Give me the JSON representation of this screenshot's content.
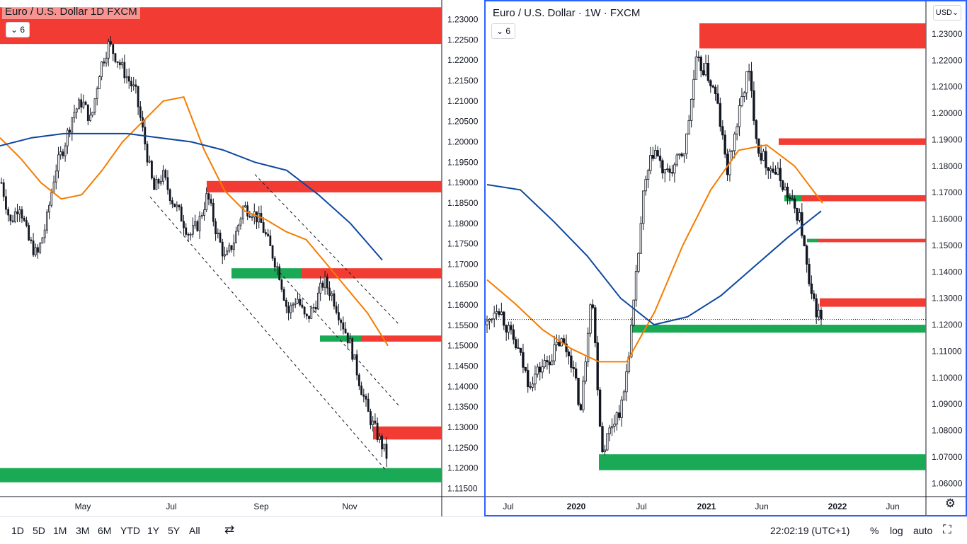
{
  "left_chart": {
    "title": "Euro / U.S. Dollar   1D   FXCM",
    "indicator_badge": "6",
    "price_ticks": [
      "1.23000",
      "1.22500",
      "1.22000",
      "1.21500",
      "1.21000",
      "1.20500",
      "1.20000",
      "1.19500",
      "1.19000",
      "1.18500",
      "1.18000",
      "1.17500",
      "1.17000",
      "1.16500",
      "1.16000",
      "1.15500",
      "1.15000",
      "1.14500",
      "1.14000",
      "1.13500",
      "1.13000",
      "1.12500",
      "1.12000",
      "1.11500"
    ],
    "time_ticks": [
      "May",
      "Jul",
      "Sep",
      "Nov"
    ]
  },
  "right_chart": {
    "title": "Euro / U.S. Dollar · 1W · FXCM",
    "indicator_badge": "6",
    "currency_selector": "USD",
    "price_ticks": [
      "1.23000",
      "1.22000",
      "1.21000",
      "1.20000",
      "1.19000",
      "1.18000",
      "1.17000",
      "1.16000",
      "1.15000",
      "1.14000",
      "1.13000",
      "1.12000",
      "1.11000",
      "1.10000",
      "1.09000",
      "1.08000",
      "1.07000",
      "1.06000"
    ],
    "time_ticks": [
      "Jul",
      "2020",
      "Jul",
      "2021",
      "Jun",
      "2022",
      "Jun"
    ]
  },
  "toolbar": {
    "ranges": [
      "1D",
      "5D",
      "1M",
      "3M",
      "6M",
      "YTD",
      "1Y",
      "5Y",
      "All"
    ],
    "clock": "22:02:19 (UTC+1)",
    "percent": "%",
    "log": "log",
    "auto": "auto"
  },
  "chart_data": [
    {
      "type": "candlestick",
      "title": "Euro / U.S. Dollar   1D   FXCM",
      "ylim": [
        1.113,
        1.232
      ],
      "x_ticks": [
        "May",
        "Jul",
        "Sep",
        "Nov"
      ],
      "close_path": [
        [
          "Mar",
          1.19
        ],
        [
          "Mar",
          1.18
        ],
        [
          "Mar",
          1.185
        ],
        [
          "Mar",
          1.176
        ],
        [
          "Apr",
          1.172
        ],
        [
          "Apr",
          1.18
        ],
        [
          "Apr",
          1.193
        ],
        [
          "Apr",
          1.199
        ],
        [
          "Apr",
          1.207
        ],
        [
          "May",
          1.21
        ],
        [
          "May",
          1.205
        ],
        [
          "May",
          1.218
        ],
        [
          "May",
          1.224
        ],
        [
          "May",
          1.22
        ],
        [
          "Jun",
          1.216
        ],
        [
          "Jun",
          1.212
        ],
        [
          "Jun",
          1.2
        ],
        [
          "Jun",
          1.188
        ],
        [
          "Jun",
          1.192
        ],
        [
          "Jul",
          1.186
        ],
        [
          "Jul",
          1.182
        ],
        [
          "Jul",
          1.177
        ],
        [
          "Jul",
          1.18
        ],
        [
          "Aug",
          1.187
        ],
        [
          "Aug",
          1.178
        ],
        [
          "Aug",
          1.171
        ],
        [
          "Aug",
          1.176
        ],
        [
          "Sep",
          1.184
        ],
        [
          "Sep",
          1.183
        ],
        [
          "Sep",
          1.18
        ],
        [
          "Sep",
          1.174
        ],
        [
          "Sep",
          1.168
        ],
        [
          "Oct",
          1.158
        ],
        [
          "Oct",
          1.162
        ],
        [
          "Oct",
          1.156
        ],
        [
          "Oct",
          1.16
        ],
        [
          "Oct",
          1.166
        ],
        [
          "Oct",
          1.162
        ],
        [
          "Nov",
          1.156
        ],
        [
          "Nov",
          1.15
        ],
        [
          "Nov",
          1.141
        ],
        [
          "Nov",
          1.133
        ],
        [
          "Nov",
          1.128
        ],
        [
          "Nov",
          1.123
        ]
      ],
      "moving_averages": [
        {
          "color": "#f57c00",
          "values": [
            1.201,
            1.196,
            1.19,
            1.186,
            1.187,
            1.193,
            1.2,
            1.205,
            1.21,
            1.211,
            1.198,
            1.188,
            1.183,
            1.181,
            1.178,
            1.176,
            1.17,
            1.164,
            1.158,
            1.15
          ]
        },
        {
          "color": "#0d47a1",
          "values": [
            1.199,
            1.201,
            1.202,
            1.202,
            1.202,
            1.201,
            1.2,
            1.198,
            1.195,
            1.193,
            1.187,
            1.18,
            1.171
          ]
        }
      ],
      "supply_zones": [
        [
          1.224,
          1.233
        ],
        [
          1.1876,
          1.1904
        ],
        [
          1.1665,
          1.169
        ],
        [
          1.151,
          1.1525
        ],
        [
          1.127,
          1.1302
        ]
      ],
      "demand_zones": [
        [
          1.1665,
          1.169
        ],
        [
          1.151,
          1.1525
        ],
        [
          1.1165,
          1.12
        ]
      ],
      "trendlines": [
        [
          "Jun",
          1.1865,
          "Nov",
          1.1195
        ],
        [
          "Aug",
          1.192,
          "Nov",
          1.155
        ],
        [
          "Sep",
          1.168,
          "Nov",
          1.135
        ]
      ]
    },
    {
      "type": "candlestick",
      "title": "Euro / U.S. Dollar · 1W · FXCM",
      "ylim": [
        1.055,
        1.238
      ],
      "x_ticks": [
        "Jul",
        "2020",
        "Jul",
        "2021",
        "Jun",
        "2022",
        "Jun"
      ],
      "close_path": [
        [
          "2019-Jun",
          1.12
        ],
        [
          "2019-Jul",
          1.128
        ],
        [
          "2019-Jul",
          1.118
        ],
        [
          "2019-Aug",
          1.11
        ],
        [
          "2019-Sep",
          1.098
        ],
        [
          "2019-Oct",
          1.103
        ],
        [
          "2019-Nov",
          1.107
        ],
        [
          "2019-Dec",
          1.114
        ],
        [
          "2020-Jan",
          1.108
        ],
        [
          "2020-Feb",
          1.087
        ],
        [
          "2020-Mar",
          1.135
        ],
        [
          "2020-Mar",
          1.072
        ],
        [
          "2020-Apr",
          1.083
        ],
        [
          "2020-May",
          1.09
        ],
        [
          "2020-Jun",
          1.125
        ],
        [
          "2020-Jul",
          1.17
        ],
        [
          "2020-Aug",
          1.187
        ],
        [
          "2020-Sep",
          1.176
        ],
        [
          "2020-Oct",
          1.18
        ],
        [
          "2020-Nov",
          1.187
        ],
        [
          "2020-Dec",
          1.219
        ],
        [
          "2021-Jan",
          1.216
        ],
        [
          "2021-Feb",
          1.205
        ],
        [
          "2021-Mar",
          1.178
        ],
        [
          "2021-Apr",
          1.197
        ],
        [
          "2021-May",
          1.217
        ],
        [
          "2021-Jun",
          1.186
        ],
        [
          "2021-Jul",
          1.18
        ],
        [
          "2021-Aug",
          1.176
        ],
        [
          "2021-Sep",
          1.167
        ],
        [
          "2021-Oct",
          1.16
        ],
        [
          "2021-Nov",
          1.13
        ],
        [
          "2021-Nov",
          1.122
        ]
      ],
      "moving_averages": [
        {
          "color": "#f57c00",
          "values": [
            1.137,
            1.128,
            1.118,
            1.111,
            1.106,
            1.106,
            1.125,
            1.15,
            1.171,
            1.186,
            1.188,
            1.18,
            1.166
          ]
        },
        {
          "color": "#0d47a1",
          "values": [
            1.173,
            1.171,
            1.159,
            1.146,
            1.13,
            1.12,
            1.123,
            1.131,
            1.142,
            1.153,
            1.163
          ]
        }
      ],
      "supply_zones": [
        [
          1.2245,
          1.234
        ],
        [
          1.188,
          1.1905
        ],
        [
          1.1667,
          1.169
        ],
        [
          1.1512,
          1.1525
        ],
        [
          1.1268,
          1.13
        ]
      ],
      "demand_zones": [
        [
          1.117,
          1.12
        ],
        [
          1.065,
          1.071
        ],
        [
          1.1667,
          1.169
        ],
        [
          1.1512,
          1.1525
        ]
      ]
    }
  ]
}
